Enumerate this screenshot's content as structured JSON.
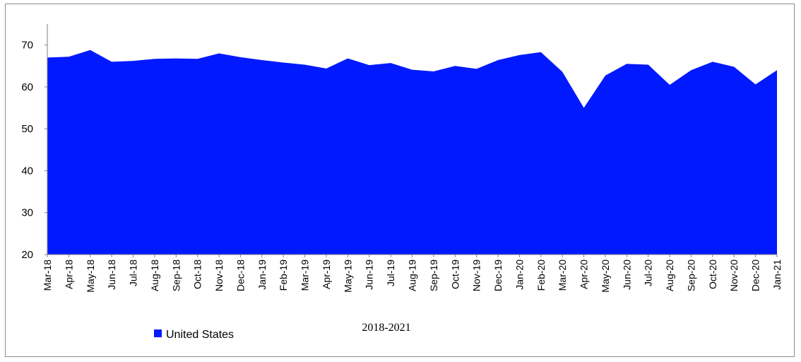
{
  "chart_data": {
    "type": "area",
    "categories": [
      "Mar-18",
      "Apr-18",
      "May-18",
      "Jun-18",
      "Jul-18",
      "Aug-18",
      "Sep-18",
      "Oct-18",
      "Nov-18",
      "Dec-18",
      "Jan-19",
      "Feb-19",
      "Mar-19",
      "Apr-19",
      "May-19",
      "Jun-19",
      "Jul-19",
      "Aug-19",
      "Sep-19",
      "Oct-19",
      "Nov-19",
      "Dec-19",
      "Jan-20",
      "Feb-20",
      "Mar-20",
      "Apr-20",
      "May-20",
      "Jun-20",
      "Jul-20",
      "Aug-20",
      "Sep-20",
      "Oct-20",
      "Nov-20",
      "Dec-20",
      "Jan-21"
    ],
    "series": [
      {
        "name": "United States",
        "values": [
          67.0,
          67.2,
          68.8,
          66.0,
          66.2,
          66.7,
          66.8,
          66.7,
          68.0,
          67.1,
          66.4,
          65.8,
          65.3,
          64.4,
          66.8,
          65.2,
          65.7,
          64.1,
          63.7,
          65.0,
          64.3,
          66.4,
          67.6,
          68.3,
          63.6,
          55.0,
          62.7,
          65.5,
          65.3,
          60.5,
          64.0,
          66.0,
          64.8,
          60.6,
          64.0
        ],
        "color": "#0019FF"
      }
    ],
    "xlabel": "2018-2021",
    "ylabel": "",
    "ylim": [
      20,
      75
    ],
    "yticks": [
      20,
      30,
      40,
      50,
      60,
      70
    ],
    "grid": false,
    "legend_position": "bottom-left"
  }
}
